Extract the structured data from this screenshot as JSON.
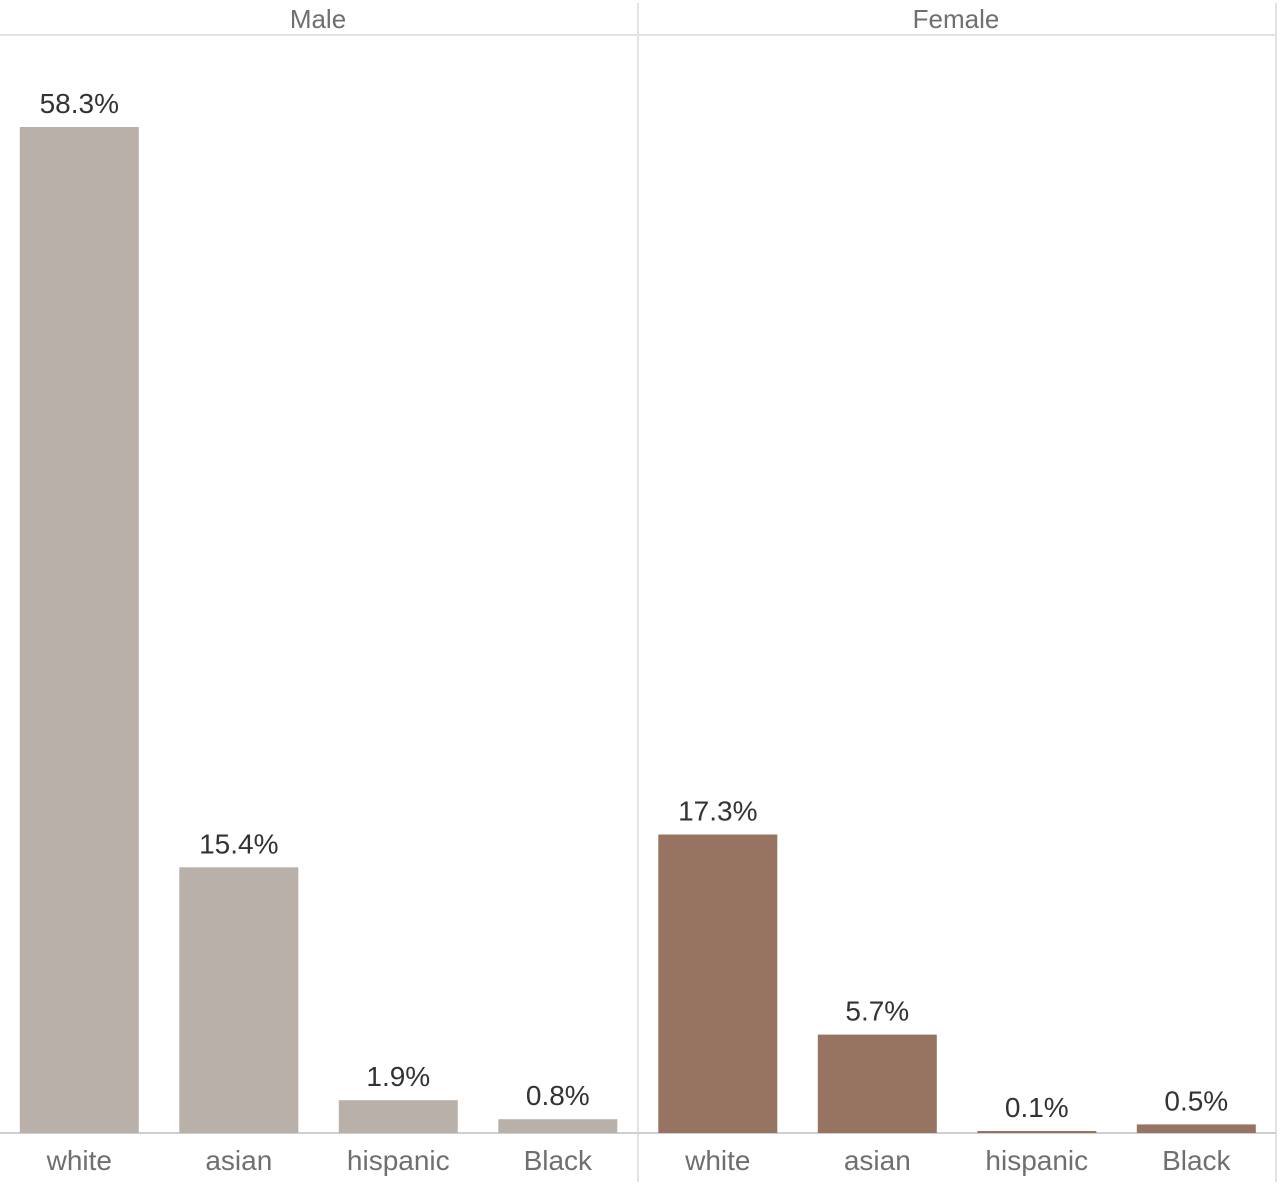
{
  "chart_data": {
    "type": "bar",
    "ylim": [
      0,
      60
    ],
    "grid": false,
    "categories": [
      "white",
      "asian",
      "hispanic",
      "Black"
    ],
    "series": [
      {
        "name": "Male",
        "color": "#b9b0aa",
        "values": [
          58.3,
          15.4,
          1.9,
          0.8
        ],
        "labels": [
          "58.3%",
          "15.4%",
          "1.9%",
          "0.8%"
        ]
      },
      {
        "name": "Female",
        "color": "#967461",
        "values": [
          17.3,
          5.7,
          0.1,
          0.5
        ],
        "labels": [
          "17.3%",
          "5.7%",
          "0.1%",
          "0.5%"
        ]
      }
    ]
  }
}
